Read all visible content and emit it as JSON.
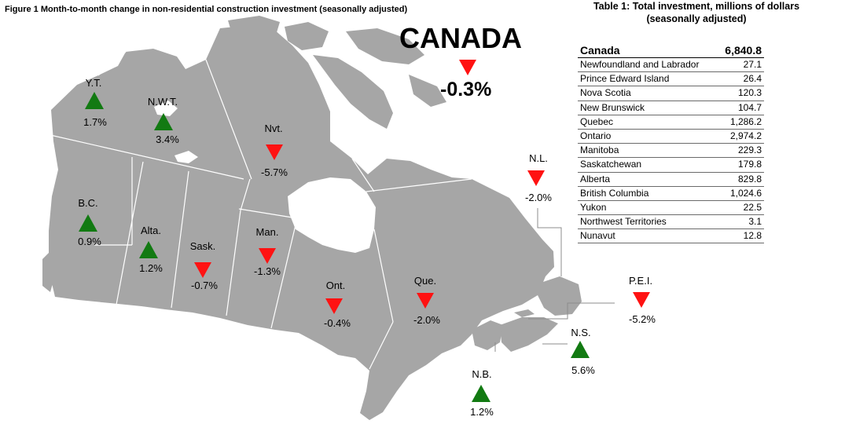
{
  "figure_title": "Figure 1  Month-to-month change in non-residential construction investment (seasonally adjusted)",
  "national": {
    "name": "CANADA",
    "change": "-0.3%",
    "direction": "down"
  },
  "regions": [
    {
      "id": "yt",
      "abbr": "Y.T.",
      "change": "1.7%",
      "direction": "up"
    },
    {
      "id": "nwt",
      "abbr": "N.W.T.",
      "change": "3.4%",
      "direction": "up"
    },
    {
      "id": "nvt",
      "abbr": "Nvt.",
      "change": "-5.7%",
      "direction": "down"
    },
    {
      "id": "bc",
      "abbr": "B.C.",
      "change": "0.9%",
      "direction": "up"
    },
    {
      "id": "alta",
      "abbr": "Alta.",
      "change": "1.2%",
      "direction": "up"
    },
    {
      "id": "sask",
      "abbr": "Sask.",
      "change": "-0.7%",
      "direction": "down"
    },
    {
      "id": "man",
      "abbr": "Man.",
      "change": "-1.3%",
      "direction": "down"
    },
    {
      "id": "ont",
      "abbr": "Ont.",
      "change": "-0.4%",
      "direction": "down"
    },
    {
      "id": "que",
      "abbr": "Que.",
      "change": "-2.0%",
      "direction": "down"
    },
    {
      "id": "nl",
      "abbr": "N.L.",
      "change": "-2.0%",
      "direction": "down"
    },
    {
      "id": "pei",
      "abbr": "P.E.I.",
      "change": "-5.2%",
      "direction": "down"
    },
    {
      "id": "ns",
      "abbr": "N.S.",
      "change": "5.6%",
      "direction": "up"
    },
    {
      "id": "nb",
      "abbr": "N.B.",
      "change": "1.2%",
      "direction": "up"
    }
  ],
  "colors": {
    "up": "#127a12",
    "down": "#ff1212",
    "land": "#a6a6a6",
    "border": "#ffffff"
  },
  "table": {
    "title_line1": "Table 1: Total investment, millions of dollars",
    "title_line2": "(seasonally adjusted)",
    "total": {
      "name": "Canada",
      "value": "6,840.8"
    },
    "rows": [
      {
        "name": "Newfoundland and Labrador",
        "value": "27.1"
      },
      {
        "name": "Prince Edward Island",
        "value": "26.4"
      },
      {
        "name": "Nova Scotia",
        "value": "120.3"
      },
      {
        "name": "New Brunswick",
        "value": "104.7"
      },
      {
        "name": "Quebec",
        "value": "1,286.2"
      },
      {
        "name": "Ontario",
        "value": "2,974.2"
      },
      {
        "name": "Manitoba",
        "value": "229.3"
      },
      {
        "name": "Saskatchewan",
        "value": "179.8"
      },
      {
        "name": "Alberta",
        "value": "829.8"
      },
      {
        "name": "British Columbia",
        "value": "1,024.6"
      },
      {
        "name": "Yukon",
        "value": "22.5"
      },
      {
        "name": "Northwest Territories",
        "value": "3.1"
      },
      {
        "name": "Nunavut",
        "value": "12.8"
      }
    ]
  }
}
